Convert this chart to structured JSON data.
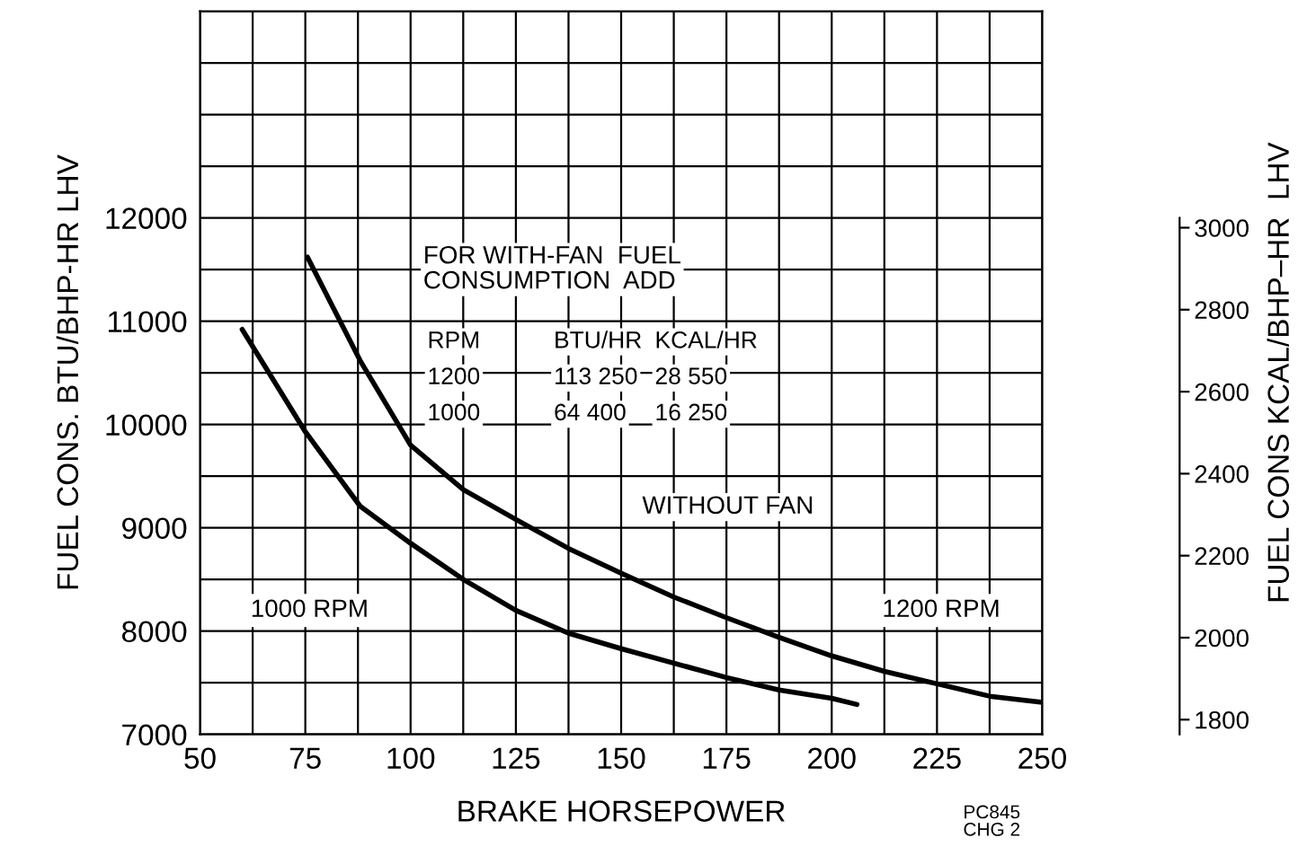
{
  "chart_data": {
    "type": "line",
    "xlabel": "BRAKE HORSEPOWER",
    "ylabel": "FUEL CONS. BTU/BHP-HR LHV",
    "y2label": "FUEL CONS KCAL/BHP–HR  LHV",
    "xlim": [
      50,
      250
    ],
    "ylim": [
      7000,
      14000
    ],
    "xticks": [
      50,
      {
        "value": 62.5,
        "label": null
      },
      75,
      {
        "value": 87.5,
        "label": null
      },
      100,
      {
        "value": 112.5,
        "label": null
      },
      125,
      {
        "value": 137.5,
        "label": null
      },
      150,
      {
        "value": 162.5,
        "label": null
      },
      175,
      {
        "value": 187.5,
        "label": null
      },
      200,
      {
        "value": 212.5,
        "label": null
      },
      225,
      {
        "value": 237.5,
        "label": null
      },
      250
    ],
    "yticks": [
      7000,
      {
        "value": 7500,
        "label": null
      },
      8000,
      {
        "value": 8500,
        "label": null
      },
      9000,
      {
        "value": 9500,
        "label": null
      },
      10000,
      {
        "value": 10500,
        "label": null
      },
      11000,
      {
        "value": 11500,
        "label": null
      },
      12000,
      {
        "value": 12500,
        "label": null
      },
      {
        "value": 13000,
        "label": null
      },
      {
        "value": 13500,
        "label": null
      },
      {
        "value": 14000,
        "label": null
      }
    ],
    "y2lim": [
      1764,
      3528
    ],
    "y2ticks": [
      1800,
      2000,
      2200,
      2400,
      2600,
      2800,
      3000
    ],
    "grid": true,
    "legend": false,
    "marker": "none",
    "line_style": "solid",
    "series": [
      {
        "name": "1000 RPM",
        "color": "#000000",
        "x": [
          60,
          75,
          88,
          100,
          112.5,
          125,
          137.5,
          150,
          162.5,
          175,
          187.5,
          200,
          206
        ],
        "values": [
          10920,
          9930,
          9210,
          8850,
          8500,
          8200,
          7980,
          7830,
          7690,
          7550,
          7430,
          7350,
          7290
        ]
      },
      {
        "name": "1200 RPM",
        "color": "#000000",
        "x": [
          75.5,
          88,
          100,
          112.5,
          125,
          137.5,
          150,
          162.5,
          175,
          187.5,
          200,
          212.5,
          225,
          237.5,
          250
        ],
        "values": [
          11620,
          10620,
          9800,
          9370,
          9080,
          8800,
          8560,
          8330,
          8130,
          7940,
          7760,
          7610,
          7490,
          7370,
          7310
        ]
      }
    ],
    "annotations": [
      "FOR WITH-FAN  FUEL\nCONSUMPTION  ADD",
      "RPM",
      "BTU/HR",
      "KCAL/HR",
      "1200",
      "113 250",
      "28 550",
      "1000",
      "64 400",
      "16 250",
      "WITHOUT FAN",
      "PC845\nCHG 2"
    ]
  }
}
